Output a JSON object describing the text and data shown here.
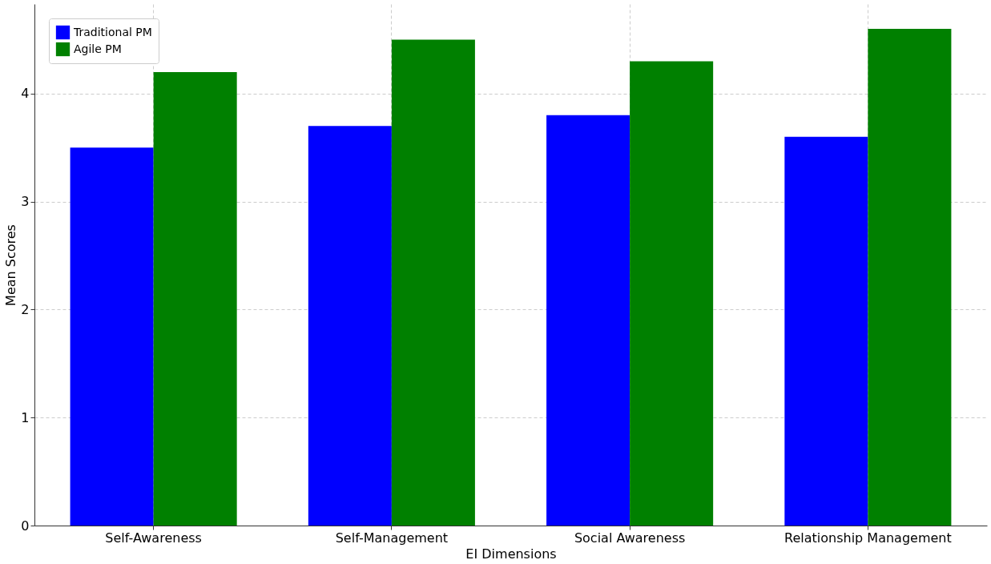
{
  "chart_data": {
    "type": "bar",
    "xlabel": "EI Dimensions",
    "ylabel": "Mean Scores",
    "categories": [
      "Self-Awareness",
      "Self-Management",
      "Social Awareness",
      "Relationship Management"
    ],
    "series": [
      {
        "name": "Traditional PM",
        "color": "#0000ff",
        "values": [
          3.5,
          3.7,
          3.8,
          3.6
        ]
      },
      {
        "name": "Agile PM",
        "color": "#008000",
        "values": [
          4.2,
          4.5,
          4.3,
          4.6
        ]
      }
    ],
    "ylim": [
      0,
      4.83
    ],
    "yticks": [
      0,
      1,
      2,
      3,
      4
    ],
    "grid": true,
    "legend": "top left"
  }
}
